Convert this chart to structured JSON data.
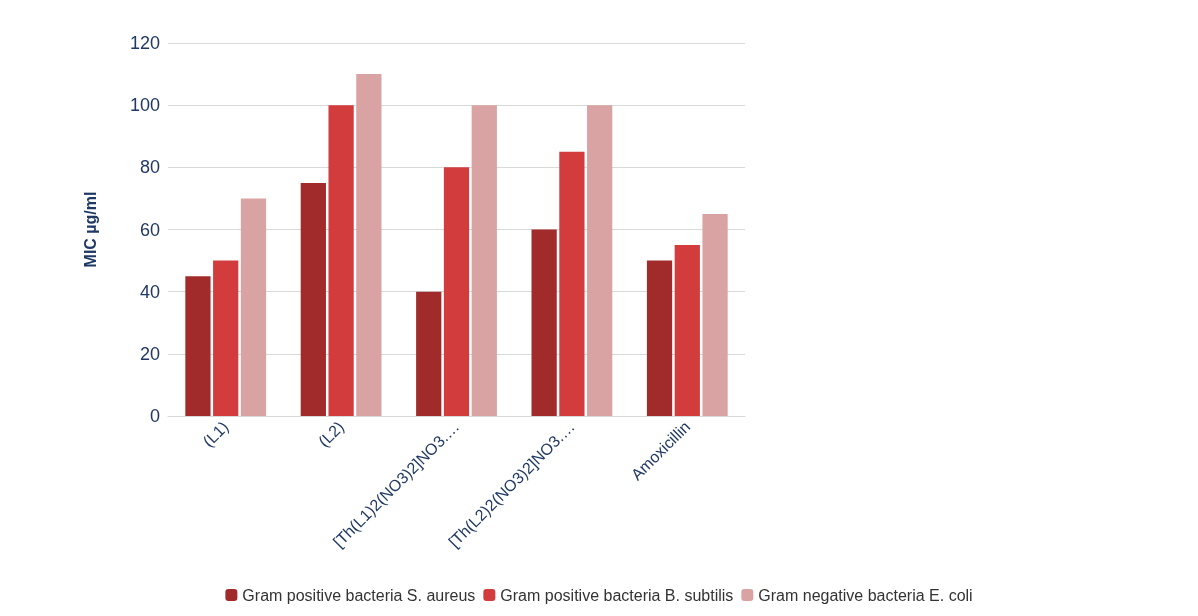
{
  "chart_data": {
    "type": "bar",
    "ylabel": "MIC µg/ml",
    "categories": [
      "(L1)",
      "(L2)",
      "[Th(L1)2(NO3)2]NO3.…",
      "[Th(L2)2(NO3)2]NO3.…",
      "Amoxicillin"
    ],
    "series": [
      {
        "name": "Gram positive bacteria S. aureus",
        "color": "#a12b2b",
        "values": [
          45,
          75,
          40,
          60,
          50
        ]
      },
      {
        "name": "Gram positive bacteria B. subtilis",
        "color": "#d23c3c",
        "values": [
          50,
          100,
          80,
          85,
          55
        ]
      },
      {
        "name": "Gram negative bacteria E. coli",
        "color": "#d9a3a3",
        "values": [
          70,
          110,
          100,
          100,
          65
        ]
      }
    ],
    "ylim": [
      0,
      120
    ],
    "yticks": [
      0,
      20,
      40,
      60,
      80,
      100,
      120
    ],
    "grid": "y",
    "legend": "bottom"
  }
}
